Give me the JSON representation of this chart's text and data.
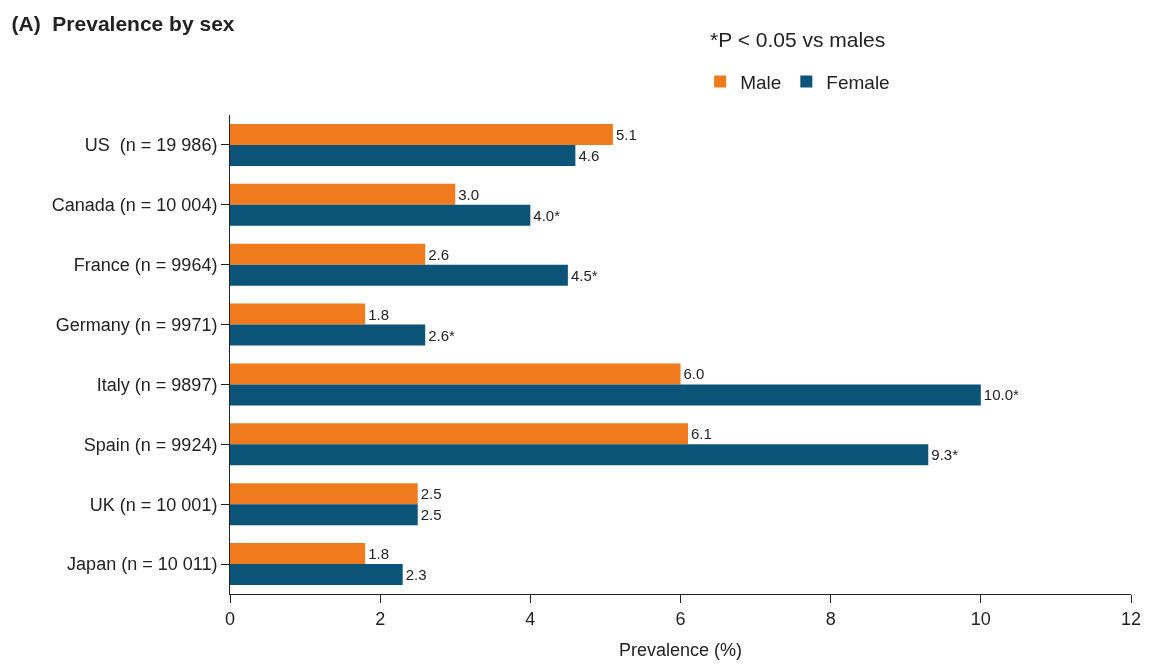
{
  "chart_data": {
    "type": "bar",
    "orientation": "horizontal",
    "title": "(A)  Prevalence by sex",
    "xlabel": "Prevalence (%)",
    "categories": [
      "US  (n = 19 986)",
      "Canada (n = 10 004)",
      "France (n = 9964)",
      "Germany (n = 9971)",
      "Italy (n = 9897)",
      "Spain (n = 9924)",
      "UK (n = 10 001)",
      "Japan (n = 10 011)"
    ],
    "series": [
      {
        "name": "Male",
        "color": "#f07b1e",
        "values": [
          5.1,
          3.0,
          2.6,
          1.8,
          6.0,
          6.1,
          2.5,
          1.8
        ],
        "value_labels": [
          "5.1",
          "3.0",
          "2.6",
          "1.8",
          "6.0",
          "6.1",
          "2.5",
          "1.8"
        ]
      },
      {
        "name": "Female",
        "color": "#0b5478",
        "values": [
          4.6,
          4.0,
          4.5,
          2.6,
          10.0,
          9.3,
          2.5,
          2.3
        ],
        "value_labels": [
          "4.6",
          "4.0*",
          "4.5*",
          "2.6*",
          "10.0*",
          "9.3*",
          "2.5",
          "2.3"
        ]
      }
    ],
    "xlim": [
      0,
      12
    ],
    "xticks": [
      0,
      2,
      4,
      6,
      8,
      10,
      12
    ],
    "legend": "top",
    "annotations": [
      "*P < 0.05 vs males"
    ]
  }
}
